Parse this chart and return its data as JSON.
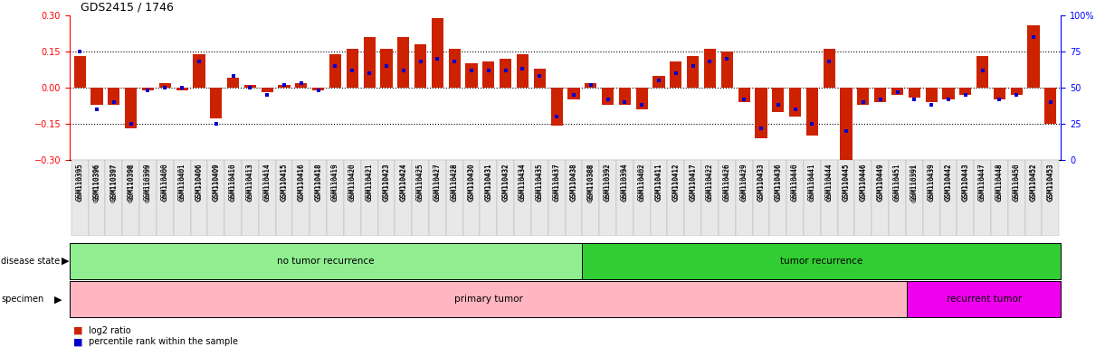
{
  "title": "GDS2415 / 1746",
  "samples": [
    "GSM110395",
    "GSM110396",
    "GSM110397",
    "GSM110398",
    "GSM110399",
    "GSM110400",
    "GSM110401",
    "GSM110406",
    "GSM110409",
    "GSM110410",
    "GSM110413",
    "GSM110414",
    "GSM110415",
    "GSM110416",
    "GSM110418",
    "GSM110419",
    "GSM110420",
    "GSM110421",
    "GSM110423",
    "GSM110424",
    "GSM110425",
    "GSM110427",
    "GSM110428",
    "GSM110430",
    "GSM110431",
    "GSM110432",
    "GSM110434",
    "GSM110435",
    "GSM110437",
    "GSM110438",
    "GSM110388",
    "GSM110392",
    "GSM110394",
    "GSM110402",
    "GSM110411",
    "GSM110412",
    "GSM110417",
    "GSM110422",
    "GSM110426",
    "GSM110429",
    "GSM110433",
    "GSM110436",
    "GSM110440",
    "GSM110441",
    "GSM110444",
    "GSM110445",
    "GSM110446",
    "GSM110449",
    "GSM110451",
    "GSM110391",
    "GSM110439",
    "GSM110442",
    "GSM110443",
    "GSM110447",
    "GSM110448",
    "GSM110450",
    "GSM110452",
    "GSM110453"
  ],
  "log2_ratio": [
    0.13,
    -0.07,
    -0.07,
    -0.17,
    -0.01,
    0.02,
    -0.01,
    0.14,
    -0.13,
    0.04,
    0.01,
    -0.02,
    0.01,
    0.02,
    -0.01,
    0.14,
    0.16,
    0.21,
    0.16,
    0.21,
    0.18,
    0.29,
    0.16,
    0.1,
    0.11,
    0.12,
    0.14,
    0.08,
    -0.16,
    -0.05,
    0.02,
    -0.07,
    -0.07,
    -0.09,
    0.05,
    0.11,
    0.13,
    0.16,
    0.15,
    -0.06,
    -0.21,
    -0.1,
    -0.12,
    -0.2,
    0.16,
    -0.33,
    -0.07,
    -0.06,
    -0.03,
    -0.04,
    -0.06,
    -0.05,
    -0.03,
    0.13,
    -0.05,
    -0.03,
    0.26,
    -0.15
  ],
  "percentile": [
    75,
    35,
    40,
    25,
    48,
    50,
    50,
    68,
    25,
    58,
    50,
    45,
    52,
    53,
    48,
    65,
    62,
    60,
    65,
    62,
    68,
    70,
    68,
    62,
    62,
    62,
    63,
    58,
    30,
    45,
    52,
    42,
    40,
    38,
    55,
    60,
    65,
    68,
    70,
    42,
    22,
    38,
    35,
    25,
    68,
    20,
    40,
    42,
    47,
    42,
    38,
    42,
    45,
    62,
    42,
    45,
    85,
    40
  ],
  "no_recurrence_count": 30,
  "recurrence_count": 28,
  "primary_count": 49,
  "recurrent_count": 9,
  "ylim": [
    -0.3,
    0.3
  ],
  "yticks_left": [
    -0.3,
    -0.15,
    0.0,
    0.15,
    0.3
  ],
  "yticks_right": [
    0,
    25,
    50,
    75,
    100
  ],
  "hline_vals": [
    -0.15,
    0.0,
    0.15
  ],
  "bar_color": "#CC2200",
  "dot_color": "#0000CC",
  "no_recur_color": "#90EE90",
  "recur_color": "#32CD32",
  "primary_color": "#FFB6C1",
  "recurrent_color": "#EE00EE",
  "bg_color": "#FFFFFF"
}
